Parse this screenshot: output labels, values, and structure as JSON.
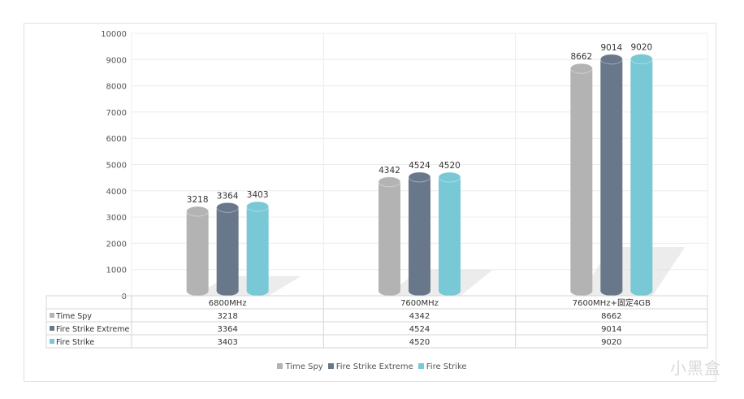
{
  "chart_data": {
    "type": "bar",
    "style": "3d-cylinder",
    "categories": [
      "6800MHz",
      "7600MHz",
      "7600MHz+固定4GB"
    ],
    "series": [
      {
        "name": "Time Spy",
        "values": [
          3218,
          4342,
          8662
        ],
        "color": "#b3b3b3"
      },
      {
        "name": "Fire Strike Extreme",
        "values": [
          3364,
          4524,
          9014
        ],
        "color": "#68788a"
      },
      {
        "name": "Fire Strike",
        "values": [
          3403,
          4520,
          9020
        ],
        "color": "#79c8d6"
      }
    ],
    "ylim": [
      0,
      10000
    ],
    "yticks": [
      0,
      1000,
      2000,
      3000,
      4000,
      5000,
      6000,
      7000,
      8000,
      9000,
      10000
    ],
    "grid": true,
    "legend_position": "bottom",
    "data_table": true
  },
  "watermark": "小黑盒"
}
